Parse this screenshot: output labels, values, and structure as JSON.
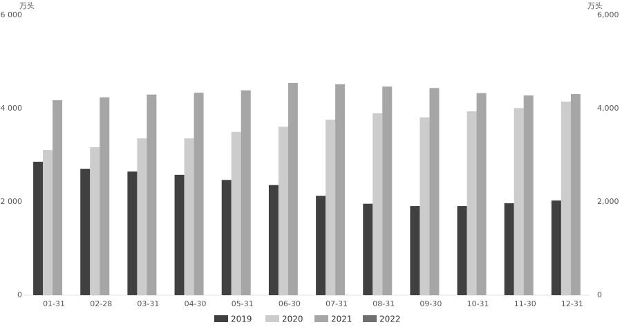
{
  "chart_data": {
    "type": "bar",
    "y_label": "万头",
    "y2_label": "万头",
    "categories": [
      "01-31",
      "02-28",
      "03-31",
      "04-30",
      "05-31",
      "06-30",
      "07-31",
      "08-31",
      "09-30",
      "10-31",
      "11-30",
      "12-31"
    ],
    "series": [
      {
        "name": "2019",
        "color": "#404040",
        "values": [
          2860,
          2710,
          2650,
          2580,
          2470,
          2360,
          2130,
          1960,
          1910,
          1910,
          1970,
          2030
        ]
      },
      {
        "name": "2020",
        "color": "#cccccc",
        "values": [
          3110,
          3170,
          3360,
          3360,
          3500,
          3610,
          3760,
          3900,
          3810,
          3940,
          4010,
          4150
        ]
      },
      {
        "name": "2021",
        "color": "#a6a6a6",
        "values": [
          4180,
          4240,
          4300,
          4340,
          4390,
          4550,
          4520,
          4470,
          4440,
          4330,
          4280,
          4310
        ]
      },
      {
        "name": "2022",
        "color": "#6e6e6e",
        "values": [
          null,
          null,
          null,
          null,
          null,
          null,
          null,
          null,
          null,
          null,
          null,
          null
        ]
      }
    ],
    "ylim": [
      0,
      6000
    ],
    "yticks": [
      0,
      {
        "value": 2000,
        "label": "2 000"
      },
      {
        "value": 4000,
        "label": "4 000"
      },
      {
        "value": 6000,
        "label": "6 000"
      }
    ],
    "y2lim": [
      0,
      6000
    ],
    "y2ticks": [
      0,
      {
        "value": 2000,
        "label": "2,000"
      },
      {
        "value": 4000,
        "label": "4,000"
      },
      {
        "value": 6000,
        "label": "6,000"
      }
    ],
    "legend": "bottom"
  }
}
